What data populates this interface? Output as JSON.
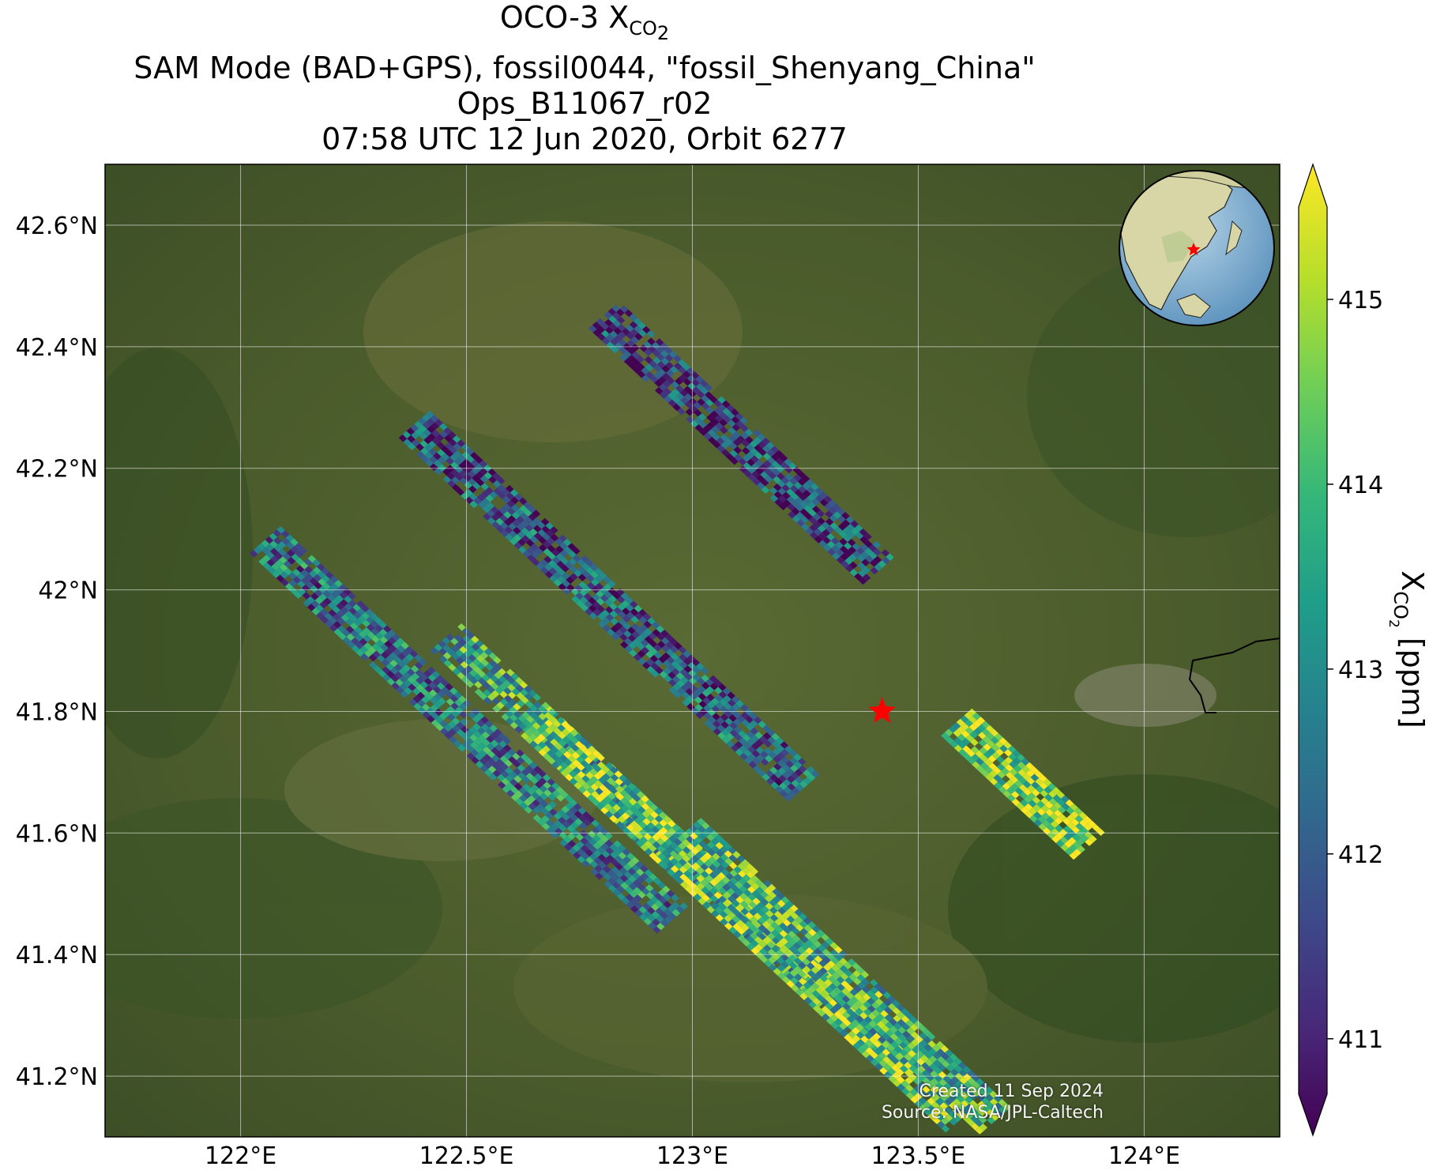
{
  "title": {
    "line1_prefix": "OCO-3 X",
    "line1_sub": "CO",
    "line1_subsub": "2",
    "line2": "SAM Mode (BAD+GPS), fossil0044, \"fossil_Shenyang_China\"",
    "line3": "Ops_B11067_r02",
    "line4": "07:58 UTC 12 Jun 2020, Orbit 6277"
  },
  "footer": {
    "created": "Created 11 Sep 2024",
    "source": "Source: NASA/JPL-Caltech"
  },
  "colors": {
    "viridis": [
      "#440154",
      "#482878",
      "#3e4989",
      "#31688e",
      "#26828e",
      "#1f9e89",
      "#35b779",
      "#6ece58",
      "#b5de2b",
      "#fde725"
    ],
    "target_marker": "#ff0000",
    "grid": "#ffffff"
  },
  "chart_data": {
    "type": "heatmap",
    "map": {
      "lon_range": [
        121.7,
        124.3
      ],
      "lat_range": [
        41.1,
        42.7
      ],
      "lon_ticks": [
        122.0,
        122.5,
        123.0,
        123.5,
        124.0
      ],
      "lon_tick_labels": [
        "122°E",
        "122.5°E",
        "123°E",
        "123.5°E",
        "124°E"
      ],
      "lat_ticks": [
        41.2,
        41.4,
        41.6,
        41.8,
        42.0,
        42.2,
        42.4,
        42.6
      ],
      "lat_tick_labels": [
        "41.2°N",
        "41.4°N",
        "41.6°N",
        "41.8°N",
        "42°N",
        "42.2°N",
        "42.4°N",
        "42.6°N"
      ],
      "grid": true,
      "basemap": "satellite imagery",
      "target": {
        "lon": 123.42,
        "lat": 41.8,
        "marker": "red star"
      },
      "inset": "globe-locator",
      "inset_placement": "top-right"
    },
    "colorbar": {
      "label_prefix": "X",
      "label_sub": "CO",
      "label_subsub": "2",
      "label_suffix": " [ppm]",
      "range": [
        410.7,
        415.5
      ],
      "ticks": [
        411,
        412,
        413,
        414,
        415
      ],
      "tick_labels": [
        "411",
        "412",
        "413",
        "414",
        "415"
      ],
      "extend": "both",
      "colormap": "viridis"
    },
    "swaths": [
      {
        "comment": "northern swath",
        "lon0": 122.77,
        "lat0": 42.43,
        "along": [
          0.0098,
          -0.0068
        ],
        "across": [
          0.0086,
          0.0056
        ],
        "rows": 62,
        "cols": 8,
        "center": 411.8,
        "trend": 0.05
      },
      {
        "comment": "central swath",
        "lon0": 122.35,
        "lat0": 42.25,
        "along": [
          0.0098,
          -0.0068
        ],
        "across": [
          0.0086,
          0.0056
        ],
        "rows": 88,
        "cols": 8,
        "center": 412.1,
        "trend": 0.035
      },
      {
        "comment": "western swath",
        "lon0": 122.02,
        "lat0": 42.06,
        "along": [
          0.0098,
          -0.0068
        ],
        "across": [
          0.0086,
          0.0056
        ],
        "rows": 92,
        "cols": 8,
        "center": 412.6,
        "trend": 0.03
      },
      {
        "comment": "lower-central swath",
        "lon0": 122.42,
        "lat0": 41.9,
        "along": [
          0.0098,
          -0.0068
        ],
        "across": [
          0.0086,
          0.0056
        ],
        "rows": 100,
        "cols": 8,
        "center": 413.6,
        "trend": 0.02
      },
      {
        "comment": "southern swath",
        "lon0": 122.62,
        "lat0": 41.76,
        "along": [
          0.0098,
          -0.0068
        ],
        "across": [
          0.0086,
          0.0056
        ],
        "rows": 96,
        "cols": 8,
        "center": 414.2,
        "trend": -0.01
      },
      {
        "comment": "south-east swath",
        "lon0": 122.95,
        "lat0": 41.58,
        "along": [
          0.0098,
          -0.0068
        ],
        "across": [
          0.0086,
          0.0056
        ],
        "rows": 70,
        "cols": 8,
        "center": 413.8,
        "trend": -0.03
      },
      {
        "comment": "eastern tail",
        "lon0": 123.55,
        "lat0": 41.76,
        "along": [
          0.0098,
          -0.0068
        ],
        "across": [
          0.0086,
          0.0056
        ],
        "rows": 30,
        "cols": 8,
        "center": 414.6,
        "trend": 0.0
      }
    ]
  }
}
